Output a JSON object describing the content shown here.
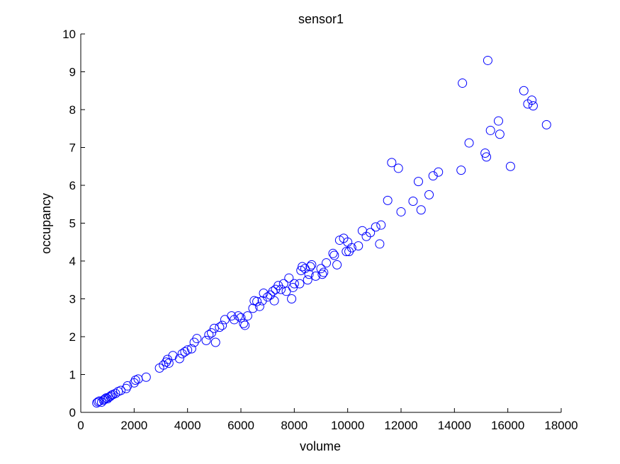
{
  "chart_data": {
    "type": "scatter",
    "title": "sensor1",
    "xlabel": "volume",
    "ylabel": "occupancy",
    "xlim": [
      0,
      18000
    ],
    "ylim": [
      0,
      10
    ],
    "xticks": [
      "0",
      "2000",
      "4000",
      "6000",
      "8000",
      "10000",
      "12000",
      "14000",
      "16000",
      "18000"
    ],
    "yticks": [
      "0",
      "1",
      "2",
      "3",
      "4",
      "5",
      "6",
      "7",
      "8",
      "9",
      "10"
    ],
    "grid": false,
    "marker": "open-circle",
    "marker_color": "#0000ff",
    "series": [
      {
        "points": [
          [
            600,
            0.25
          ],
          [
            650,
            0.28
          ],
          [
            700,
            0.3
          ],
          [
            780,
            0.27
          ],
          [
            850,
            0.32
          ],
          [
            900,
            0.35
          ],
          [
            950,
            0.38
          ],
          [
            1000,
            0.36
          ],
          [
            1050,
            0.4
          ],
          [
            1100,
            0.42
          ],
          [
            1150,
            0.45
          ],
          [
            1200,
            0.47
          ],
          [
            1300,
            0.5
          ],
          [
            1400,
            0.55
          ],
          [
            1500,
            0.58
          ],
          [
            1700,
            0.63
          ],
          [
            1750,
            0.7
          ],
          [
            2000,
            0.78
          ],
          [
            2050,
            0.85
          ],
          [
            2150,
            0.88
          ],
          [
            2450,
            0.93
          ],
          [
            2950,
            1.17
          ],
          [
            3100,
            1.25
          ],
          [
            3200,
            1.33
          ],
          [
            3250,
            1.4
          ],
          [
            3300,
            1.3
          ],
          [
            3450,
            1.5
          ],
          [
            3700,
            1.42
          ],
          [
            3800,
            1.55
          ],
          [
            3900,
            1.6
          ],
          [
            4000,
            1.65
          ],
          [
            4150,
            1.68
          ],
          [
            4250,
            1.85
          ],
          [
            4350,
            1.95
          ],
          [
            4700,
            1.9
          ],
          [
            4800,
            2.05
          ],
          [
            4900,
            2.1
          ],
          [
            5000,
            2.22
          ],
          [
            5050,
            1.85
          ],
          [
            5200,
            2.25
          ],
          [
            5300,
            2.3
          ],
          [
            5400,
            2.45
          ],
          [
            5650,
            2.55
          ],
          [
            5750,
            2.45
          ],
          [
            5900,
            2.55
          ],
          [
            6000,
            2.5
          ],
          [
            6100,
            2.35
          ],
          [
            6150,
            2.3
          ],
          [
            6250,
            2.55
          ],
          [
            6450,
            2.75
          ],
          [
            6500,
            2.95
          ],
          [
            6600,
            2.93
          ],
          [
            6700,
            2.8
          ],
          [
            6800,
            2.95
          ],
          [
            6850,
            3.15
          ],
          [
            7000,
            3.05
          ],
          [
            7100,
            3.1
          ],
          [
            7200,
            3.2
          ],
          [
            7250,
            2.95
          ],
          [
            7300,
            3.25
          ],
          [
            7400,
            3.35
          ],
          [
            7500,
            3.25
          ],
          [
            7600,
            3.4
          ],
          [
            7700,
            3.2
          ],
          [
            7800,
            3.55
          ],
          [
            7900,
            3.0
          ],
          [
            7950,
            3.3
          ],
          [
            8000,
            3.4
          ],
          [
            8200,
            3.4
          ],
          [
            8250,
            3.75
          ],
          [
            8300,
            3.85
          ],
          [
            8400,
            3.8
          ],
          [
            8500,
            3.5
          ],
          [
            8550,
            3.65
          ],
          [
            8600,
            3.85
          ],
          [
            8650,
            3.9
          ],
          [
            8800,
            3.6
          ],
          [
            9000,
            3.8
          ],
          [
            9050,
            3.65
          ],
          [
            9100,
            3.7
          ],
          [
            9200,
            3.95
          ],
          [
            9450,
            4.2
          ],
          [
            9500,
            4.15
          ],
          [
            9600,
            3.9
          ],
          [
            9700,
            4.55
          ],
          [
            9850,
            4.6
          ],
          [
            9950,
            4.25
          ],
          [
            10000,
            4.5
          ],
          [
            10050,
            4.25
          ],
          [
            10150,
            4.35
          ],
          [
            10400,
            4.4
          ],
          [
            10550,
            4.8
          ],
          [
            10700,
            4.65
          ],
          [
            10850,
            4.75
          ],
          [
            11050,
            4.9
          ],
          [
            11200,
            4.45
          ],
          [
            11250,
            4.95
          ],
          [
            11500,
            5.6
          ],
          [
            11650,
            6.6
          ],
          [
            11900,
            6.45
          ],
          [
            12000,
            5.3
          ],
          [
            12450,
            5.58
          ],
          [
            12650,
            6.1
          ],
          [
            12750,
            5.35
          ],
          [
            13050,
            5.75
          ],
          [
            13200,
            6.25
          ],
          [
            13400,
            6.35
          ],
          [
            14250,
            6.4
          ],
          [
            14300,
            8.7
          ],
          [
            14550,
            7.12
          ],
          [
            15150,
            6.85
          ],
          [
            15200,
            6.75
          ],
          [
            15250,
            9.3
          ],
          [
            15350,
            7.45
          ],
          [
            15650,
            7.7
          ],
          [
            15700,
            7.35
          ],
          [
            16100,
            6.5
          ],
          [
            16600,
            8.5
          ],
          [
            16750,
            8.15
          ],
          [
            16900,
            8.25
          ],
          [
            16950,
            8.1
          ],
          [
            17450,
            7.6
          ]
        ]
      }
    ]
  }
}
